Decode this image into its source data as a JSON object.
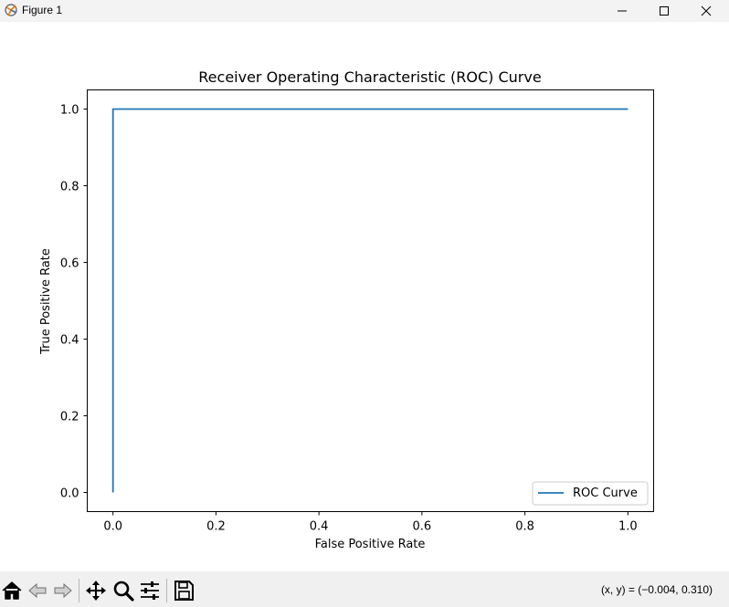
{
  "window": {
    "title": "Figure 1",
    "icons": [
      "app-icon",
      "minimize-icon",
      "maximize-icon",
      "close-icon"
    ]
  },
  "chart_data": {
    "type": "line",
    "title": "Receiver Operating Characteristic (ROC) Curve",
    "xlabel": "False Positive Rate",
    "ylabel": "True Positive Rate",
    "xlim": [
      -0.05,
      1.05
    ],
    "ylim": [
      -0.05,
      1.05
    ],
    "xticks": [
      0.0,
      0.2,
      0.4,
      0.6,
      0.8,
      1.0
    ],
    "xtick_labels": [
      "0.0",
      "0.2",
      "0.4",
      "0.6",
      "0.8",
      "1.0"
    ],
    "yticks": [
      0.0,
      0.2,
      0.4,
      0.6,
      0.8,
      1.0
    ],
    "ytick_labels": [
      "0.0",
      "0.2",
      "0.4",
      "0.6",
      "0.8",
      "1.0"
    ],
    "grid": false,
    "legend_position": "lower right",
    "series": [
      {
        "name": "ROC Curve",
        "color": "#1f77b4",
        "x": [
          0.0,
          0.0,
          1.0
        ],
        "y": [
          0.0,
          1.0,
          1.0
        ]
      }
    ]
  },
  "toolbar": {
    "icons": [
      "home-icon",
      "back-icon",
      "forward-icon",
      "pan-icon",
      "zoom-icon",
      "configure-subplots-icon",
      "save-icon"
    ],
    "coords": "(x, y) = (−0.004, 0.310)"
  }
}
